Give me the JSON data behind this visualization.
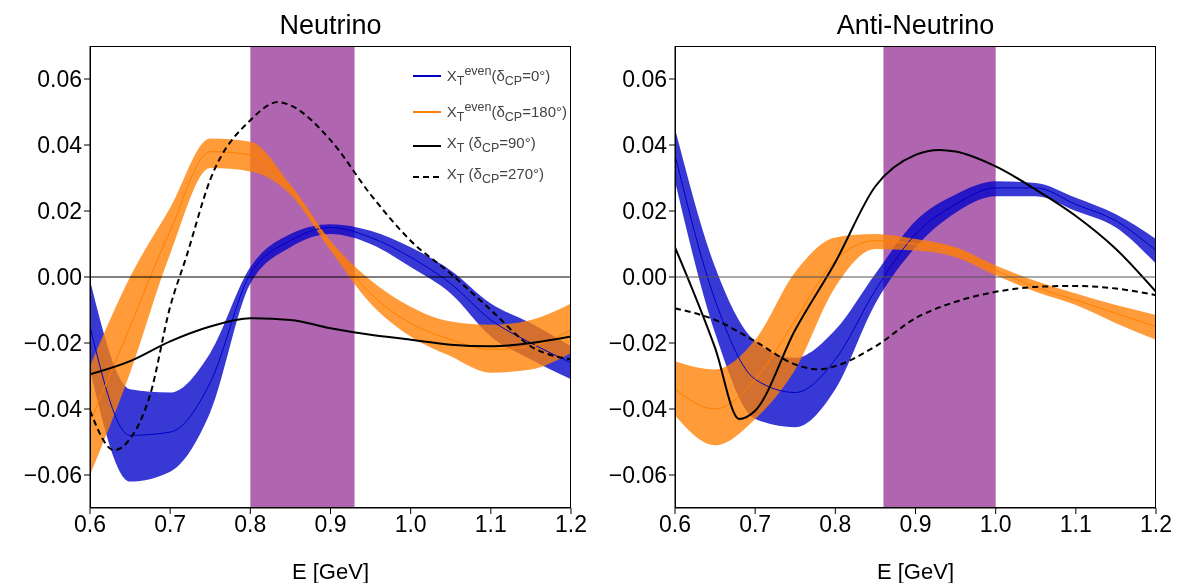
{
  "chart_data": [
    {
      "type": "line",
      "title": "Neutrino",
      "xlabel": "E [GeV]",
      "xlim": [
        0.6,
        1.2
      ],
      "xticks": [
        {
          "value": 0.6,
          "label": "0.6"
        },
        {
          "value": 0.7,
          "label": "0.7"
        },
        {
          "value": 0.8,
          "label": "0.8"
        },
        {
          "value": 0.9,
          "label": "0.9"
        },
        {
          "value": 1.0,
          "label": "1.0"
        },
        {
          "value": 1.1,
          "label": "1.1"
        },
        {
          "value": 1.2,
          "label": "1.2"
        }
      ],
      "ylim": [
        -0.07,
        0.07
      ],
      "yticks": [
        {
          "value": -0.06,
          "label": "−0.06"
        },
        {
          "value": -0.04,
          "label": "−0.04"
        },
        {
          "value": -0.02,
          "label": "−0.02"
        },
        {
          "value": 0,
          "label": "0.00"
        },
        {
          "value": 0.02,
          "label": "0.02"
        },
        {
          "value": 0.04,
          "label": "0.04"
        },
        {
          "value": 0.06,
          "label": "0.06"
        }
      ],
      "legend": "top right",
      "x": [
        0.6,
        0.65,
        0.7,
        0.75,
        0.8,
        0.85,
        0.9,
        0.95,
        1.0,
        1.05,
        1.1,
        1.15,
        1.2
      ],
      "bands": [
        {
          "axis": "x",
          "from": 0.8,
          "to": 0.93,
          "color": "#b065b0"
        }
      ],
      "ref_lines": [
        {
          "axis": "y",
          "value": 0,
          "color": "#000000"
        }
      ],
      "series": [
        {
          "name": "X$_{T}$$^{even}$(δ$_{CP}$=0°)",
          "color": "#0000c8",
          "values": [
            -0.015,
            -0.048,
            -0.047,
            -0.032,
            0.001,
            0.011,
            0.015,
            0.012,
            0.006,
            -0.002,
            -0.013,
            -0.02,
            -0.026
          ],
          "lower": [
            -0.028,
            -0.062,
            -0.059,
            -0.041,
            -0.002,
            0.009,
            0.013,
            0.01,
            0.003,
            -0.005,
            -0.018,
            -0.025,
            -0.031
          ],
          "upper": [
            -0.001,
            -0.034,
            -0.035,
            -0.023,
            0.003,
            0.013,
            0.016,
            0.014,
            0.009,
            0.002,
            -0.008,
            -0.014,
            -0.021
          ]
        },
        {
          "name": "X$_{T}$$^{even}$(δ$_{CP}$=180°)",
          "color": "#ff7f00",
          "values": [
            -0.044,
            -0.015,
            0.014,
            0.038,
            0.037,
            0.027,
            0.01,
            -0.005,
            -0.014,
            -0.019,
            -0.022,
            -0.021,
            -0.016
          ],
          "lower": [
            -0.06,
            -0.029,
            0.007,
            0.033,
            0.032,
            0.025,
            0.008,
            -0.008,
            -0.018,
            -0.024,
            -0.029,
            -0.028,
            -0.023
          ],
          "upper": [
            -0.027,
            0.0,
            0.021,
            0.042,
            0.041,
            0.028,
            0.011,
            -0.001,
            -0.009,
            -0.0135,
            -0.0145,
            -0.013,
            -0.008
          ]
        },
        {
          "name": "X$_{T}$ (δ$_{CP}$=90°)",
          "color": "#000000",
          "line_style": "solid",
          "values": [
            -0.0295,
            -0.0255,
            -0.0195,
            -0.015,
            -0.0125,
            -0.013,
            -0.0155,
            -0.0175,
            -0.019,
            -0.0205,
            -0.021,
            -0.02,
            -0.018
          ]
        },
        {
          "name": "X$_{T}$ (δ$_{CP}$=270°)",
          "color": "#000000",
          "line_style": "dashed",
          "x": [
            0.6,
            0.63,
            0.65,
            0.675,
            0.7,
            0.72,
            0.75,
            0.8,
            0.835,
            0.85,
            0.9,
            0.95,
            1.0,
            1.05,
            1.1,
            1.15,
            1.2
          ],
          "values": [
            -0.0405,
            -0.0525,
            -0.049,
            -0.0357,
            -0.009,
            0.006,
            0.0295,
            0.0475,
            0.053,
            0.052,
            0.0415,
            0.025,
            0.011,
            0.001,
            -0.01,
            -0.021,
            -0.025
          ]
        }
      ]
    },
    {
      "type": "line",
      "title": "Anti-Neutrino",
      "xlabel": "E [GeV]",
      "xlim": [
        0.6,
        1.2
      ],
      "xticks": [
        {
          "value": 0.6,
          "label": "0.6"
        },
        {
          "value": 0.7,
          "label": "0.7"
        },
        {
          "value": 0.8,
          "label": "0.8"
        },
        {
          "value": 0.9,
          "label": "0.9"
        },
        {
          "value": 1.0,
          "label": "1.0"
        },
        {
          "value": 1.1,
          "label": "1.1"
        },
        {
          "value": 1.2,
          "label": "1.2"
        }
      ],
      "ylim": [
        -0.07,
        0.07
      ],
      "yticks": [
        {
          "value": -0.06,
          "label": "−0.06"
        },
        {
          "value": -0.04,
          "label": "−0.04"
        },
        {
          "value": -0.02,
          "label": "−0.02"
        },
        {
          "value": 0,
          "label": "0.00"
        },
        {
          "value": 0.02,
          "label": "0.02"
        },
        {
          "value": 0.04,
          "label": "0.04"
        },
        {
          "value": 0.06,
          "label": "0.06"
        }
      ],
      "x": [
        0.6,
        0.65,
        0.7,
        0.75,
        0.8,
        0.85,
        0.9,
        0.95,
        1.0,
        1.05,
        1.1,
        1.15,
        1.2
      ],
      "bands": [
        {
          "axis": "x",
          "from": 0.86,
          "to": 1.0,
          "color": "#b065b0"
        }
      ],
      "ref_lines": [
        {
          "axis": "y",
          "value": 0,
          "color": "#555555"
        }
      ],
      "series": [
        {
          "color": "#0000c8",
          "values": [
            0.037,
            -0.007,
            -0.031,
            -0.035,
            -0.025,
            -0.004,
            0.013,
            0.022,
            0.027,
            0.027,
            0.022,
            0.017,
            0.008
          ],
          "lower": [
            0.029,
            -0.017,
            -0.043,
            -0.0455,
            -0.034,
            -0.008,
            0.009,
            0.0195,
            0.0245,
            0.0245,
            0.02,
            0.015,
            0.004
          ],
          "upper": [
            0.045,
            0.003,
            -0.0195,
            -0.0245,
            -0.016,
            0.001,
            0.017,
            0.025,
            0.029,
            0.0285,
            0.024,
            0.019,
            0.0115
          ]
        },
        {
          "color": "#ff7f00",
          "values": [
            -0.034,
            -0.04,
            -0.031,
            -0.013,
            0.005,
            0.011,
            0.01,
            0.008,
            0.002,
            -0.003,
            -0.007,
            -0.011,
            -0.015
          ],
          "lower": [
            -0.042,
            -0.051,
            -0.043,
            -0.028,
            -0.003,
            0.0085,
            0.008,
            0.006,
            0.0005,
            -0.0045,
            -0.0085,
            -0.014,
            -0.019
          ],
          "upper": [
            -0.0255,
            -0.028,
            -0.019,
            0.0015,
            0.012,
            0.013,
            0.0115,
            0.009,
            0.0035,
            -0.0012,
            -0.005,
            -0.0085,
            -0.0115
          ]
        },
        {
          "color": "#000000",
          "line_style": "solid",
          "x": [
            0.6,
            0.65,
            0.68,
            0.7,
            0.75,
            0.8,
            0.85,
            0.9,
            0.93,
            0.95,
            1.0,
            1.05,
            1.1,
            1.15,
            1.2
          ],
          "values": [
            0.009,
            -0.0215,
            -0.043,
            -0.0405,
            -0.016,
            0.0045,
            0.0275,
            0.037,
            0.0385,
            0.038,
            0.0335,
            0.0265,
            0.0185,
            0.0085,
            -0.0045
          ]
        },
        {
          "color": "#000000",
          "line_style": "dashed",
          "x": [
            0.6,
            0.65,
            0.7,
            0.75,
            0.78,
            0.8,
            0.85,
            0.9,
            0.95,
            1.0,
            1.05,
            1.1,
            1.15,
            1.2
          ],
          "values": [
            -0.0095,
            -0.013,
            -0.0195,
            -0.0265,
            -0.028,
            -0.027,
            -0.021,
            -0.0125,
            -0.0075,
            -0.0045,
            -0.003,
            -0.0027,
            -0.0035,
            -0.0055
          ]
        }
      ]
    }
  ]
}
